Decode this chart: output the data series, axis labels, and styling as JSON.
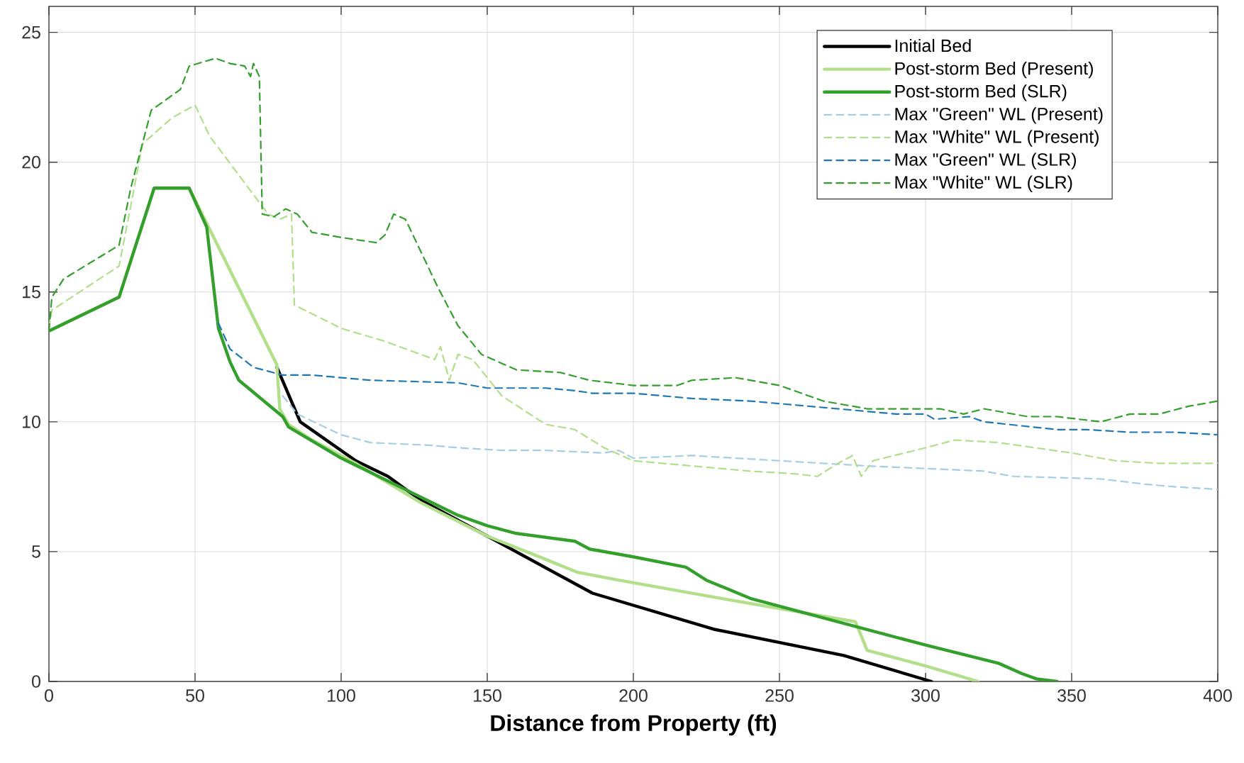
{
  "chart_data": {
    "type": "line",
    "xlabel": "**Distance from Property (ft)**",
    "xlim": [
      0,
      400
    ],
    "xticks": [
      0,
      50,
      100,
      150,
      200,
      250,
      300,
      350,
      400
    ],
    "ylim": [
      0,
      26
    ],
    "yticks": [
      0,
      5,
      10,
      15,
      20,
      25
    ],
    "grid": true,
    "legend": "top right",
    "series": [
      {
        "name": "Initial Bed",
        "color": "#000000",
        "line_style": "solid",
        "x": [
          78,
          86,
          105,
          116,
          127,
          150,
          186,
          228,
          272,
          302
        ],
        "values": [
          12.1,
          10,
          8.5,
          7.9,
          7,
          5.6,
          3.4,
          2,
          1,
          0
        ]
      },
      {
        "name": "Post-storm Bed (Present)",
        "color": "#b2df8a",
        "line_style": "solid",
        "x": [
          0,
          24,
          36,
          48,
          78,
          79,
          82,
          90,
          105,
          127,
          150,
          170,
          181,
          195,
          230,
          276,
          280,
          300,
          318
        ],
        "values": [
          13.5,
          14.8,
          19,
          19,
          12.2,
          10.5,
          9.9,
          9.3,
          8.4,
          6.9,
          5.6,
          4.7,
          4.2,
          3.9,
          3.2,
          2.3,
          1.2,
          0.6,
          0
        ]
      },
      {
        "name": "Post-storm Bed (SLR)",
        "color": "#33a02c",
        "line_style": "solid",
        "x": [
          0,
          24,
          36,
          48,
          54,
          58,
          62,
          65,
          80,
          82,
          100,
          120,
          140,
          150,
          160,
          180,
          185,
          200,
          218,
          225,
          240,
          260,
          300,
          325,
          333,
          338,
          345
        ],
        "values": [
          13.5,
          14.8,
          19,
          19,
          17.5,
          13.6,
          12.3,
          11.6,
          10.2,
          9.8,
          8.6,
          7.5,
          6.4,
          6.0,
          5.7,
          5.4,
          5.1,
          4.8,
          4.4,
          3.9,
          3.2,
          2.6,
          1.4,
          0.7,
          0.3,
          0.1,
          0
        ]
      },
      {
        "name": "Max \"Green\" WL (Present)",
        "color": "#a6cee3",
        "line_style": "dashed",
        "x": [
          80,
          85,
          100,
          110,
          130,
          140,
          155,
          170,
          190,
          195,
          200,
          220,
          250,
          280,
          320,
          330,
          360,
          375,
          385,
          400
        ],
        "values": [
          11,
          10.3,
          9.5,
          9.2,
          9.1,
          9.0,
          8.9,
          8.9,
          8.8,
          8.9,
          8.6,
          8.7,
          8.5,
          8.3,
          8.1,
          7.9,
          7.8,
          7.6,
          7.5,
          7.4
        ]
      },
      {
        "name": "Max \"White\" WL (Present)",
        "color": "#b2df8a",
        "line_style": "dashed",
        "x": [
          0,
          1,
          24,
          29,
          32,
          42,
          50,
          55,
          65,
          75,
          79,
          83,
          84,
          100,
          115,
          132,
          134,
          137,
          140,
          145,
          155,
          170,
          180,
          190,
          200,
          220,
          240,
          255,
          263,
          270,
          275,
          278,
          282,
          300,
          310,
          325,
          350,
          365,
          380,
          400
        ],
        "values": [
          13.6,
          14.3,
          16,
          18.9,
          20.7,
          21.7,
          22.2,
          21,
          19.5,
          18,
          17.8,
          18,
          14.5,
          13.6,
          13.1,
          12.4,
          12.9,
          11.6,
          12.6,
          12.4,
          11,
          9.9,
          9.7,
          9,
          8.5,
          8.3,
          8.1,
          8,
          7.9,
          8.4,
          8.7,
          7.9,
          8.5,
          9,
          9.3,
          9.2,
          8.8,
          8.5,
          8.4,
          8.4
        ]
      },
      {
        "name": "Max \"Green\" WL (SLR)",
        "color": "#1f78b4",
        "line_style": "dashed",
        "x": [
          58,
          62,
          70,
          80,
          90,
          110,
          140,
          150,
          170,
          180,
          186,
          200,
          220,
          240,
          260,
          290,
          300,
          303,
          315,
          320,
          345,
          355,
          370,
          385,
          400
        ],
        "values": [
          13.8,
          12.8,
          12.1,
          11.8,
          11.8,
          11.6,
          11.5,
          11.3,
          11.3,
          11.2,
          11.1,
          11.1,
          10.9,
          10.8,
          10.6,
          10.3,
          10.3,
          10.1,
          10.2,
          10.0,
          9.7,
          9.7,
          9.6,
          9.6,
          9.5
        ]
      },
      {
        "name": "Max \"White\" WL (SLR)",
        "color": "#33a02c",
        "line_style": "dashed",
        "x": [
          0,
          1,
          5,
          24,
          28,
          35,
          45,
          48,
          57,
          62,
          67,
          69,
          70,
          72,
          73,
          77,
          81,
          85,
          90,
          100,
          112,
          115,
          118,
          122,
          133,
          140,
          148,
          160,
          175,
          185,
          200,
          215,
          220,
          235,
          250,
          265,
          280,
          290,
          305,
          313,
          320,
          325,
          335,
          345,
          360,
          370,
          380,
          390,
          400
        ],
        "values": [
          13.5,
          14.8,
          15.5,
          16.8,
          19,
          22,
          22.8,
          23.7,
          24,
          23.8,
          23.7,
          23.3,
          23.8,
          23.3,
          18,
          17.9,
          18.2,
          18,
          17.3,
          17.1,
          16.9,
          17.2,
          18,
          17.8,
          15.2,
          13.7,
          12.6,
          12,
          11.9,
          11.6,
          11.4,
          11.4,
          11.6,
          11.7,
          11.4,
          10.8,
          10.5,
          10.5,
          10.5,
          10.3,
          10.5,
          10.4,
          10.2,
          10.2,
          10,
          10.3,
          10.3,
          10.6,
          10.8
        ]
      }
    ]
  }
}
